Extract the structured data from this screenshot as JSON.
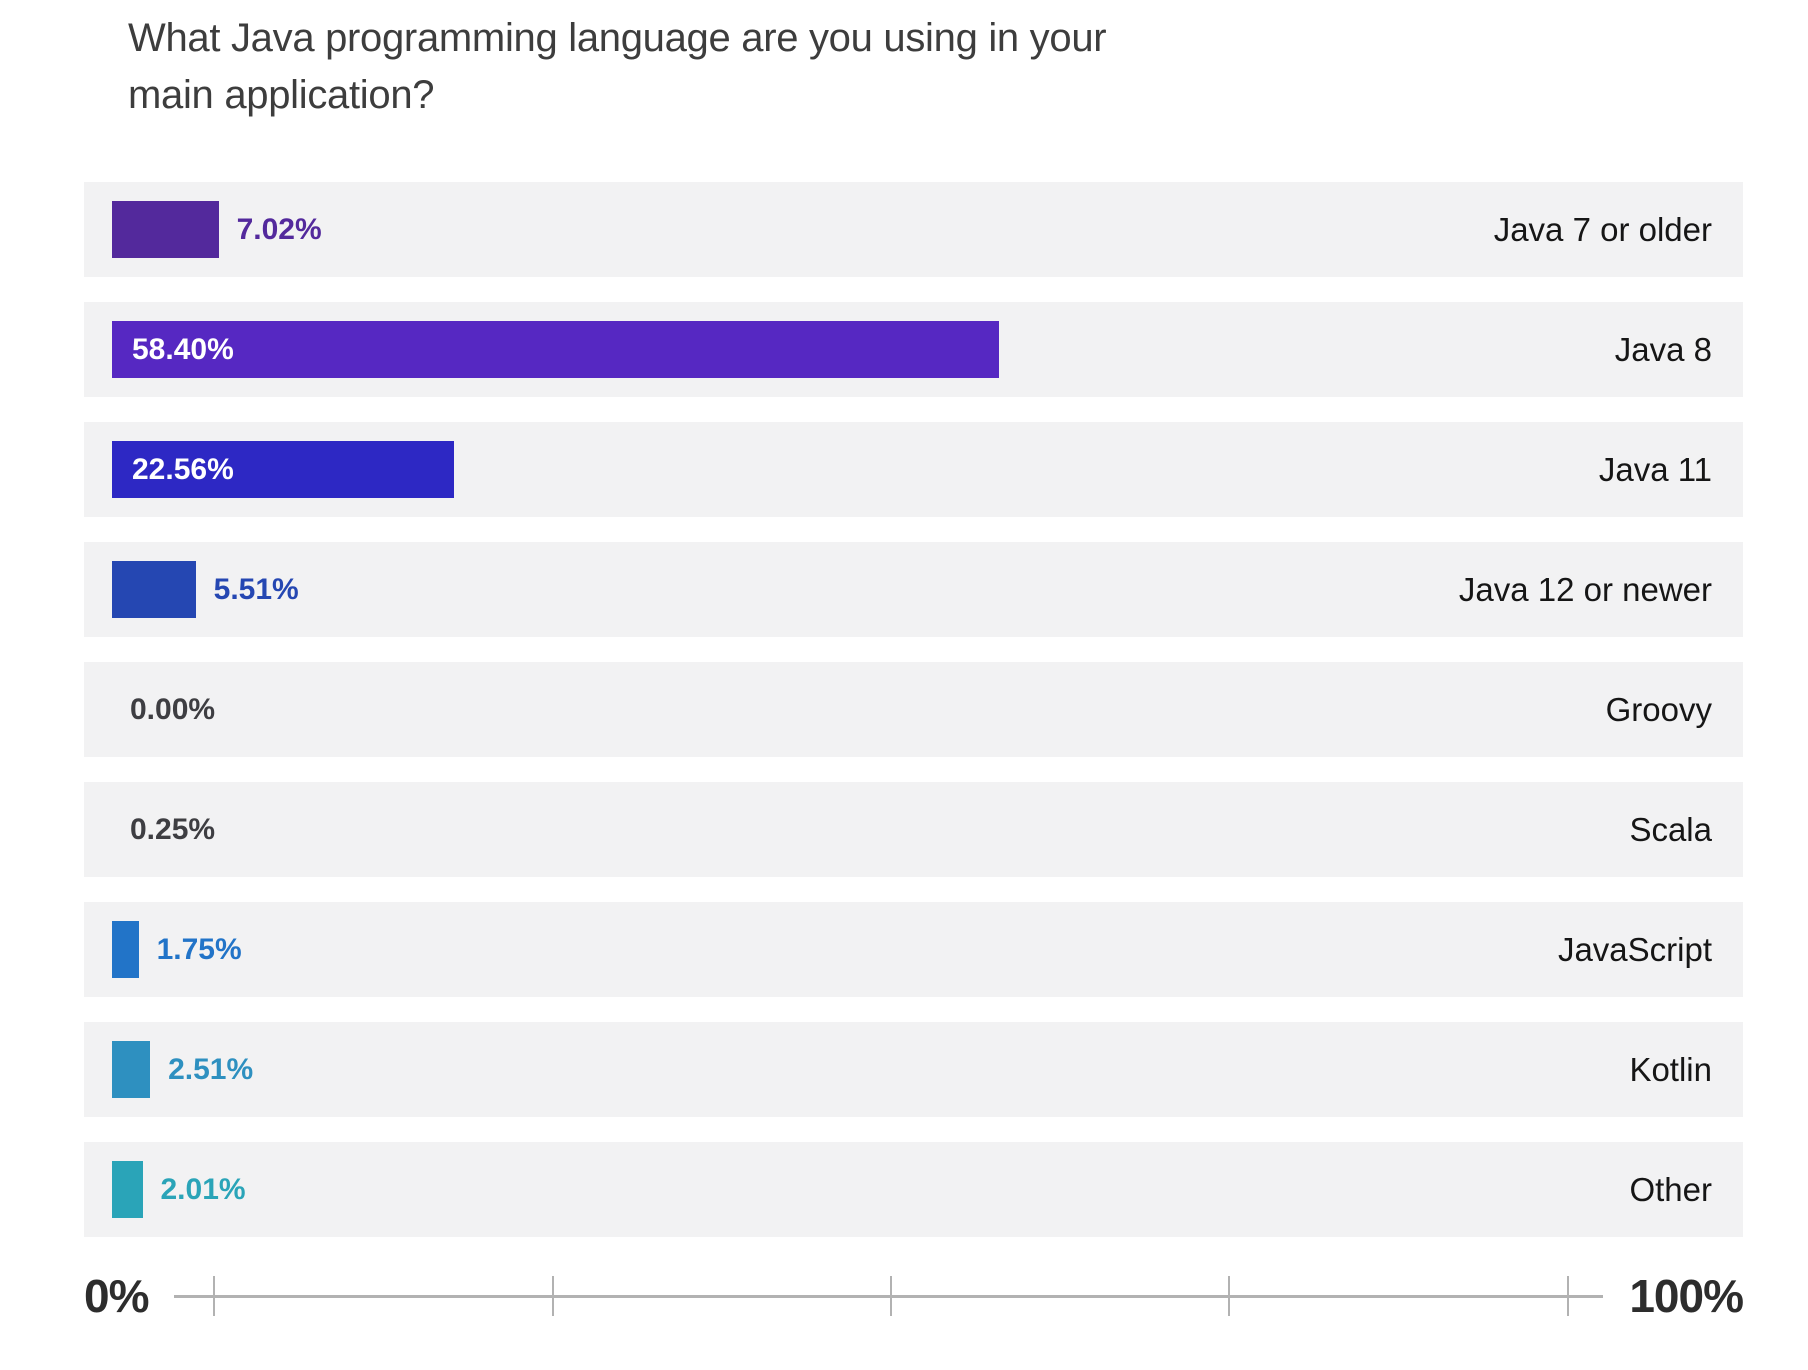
{
  "chart_data": {
    "type": "bar",
    "orientation": "horizontal",
    "title": "What Java programming language are you using in your main application?",
    "xlabel": "",
    "ylabel": "",
    "xlim": [
      0,
      100
    ],
    "grid": false,
    "legend": false,
    "x_axis": {
      "min_label": "0%",
      "max_label": "100%",
      "tick_count": 5
    },
    "items": [
      {
        "category": "Java 7 or older",
        "value": 7.02,
        "display": "7.02%",
        "bar_color": "#53299c",
        "label_color": "#53299c",
        "label_position": "outside"
      },
      {
        "category": "Java 8",
        "value": 58.4,
        "display": "58.40%",
        "bar_color": "#5628c2",
        "label_color": "#ffffff",
        "label_position": "inside"
      },
      {
        "category": "Java 11",
        "value": 22.56,
        "display": "22.56%",
        "bar_color": "#2d28c4",
        "label_color": "#ffffff",
        "label_position": "inside"
      },
      {
        "category": "Java 12 or newer",
        "value": 5.51,
        "display": "5.51%",
        "bar_color": "#2547b2",
        "label_color": "#2547b2",
        "label_position": "outside"
      },
      {
        "category": "Groovy",
        "value": 0.0,
        "display": "0.00%",
        "bar_color": null,
        "label_color": "#3e3e42",
        "label_position": "outside"
      },
      {
        "category": "Scala",
        "value": 0.25,
        "display": "0.25%",
        "bar_color": null,
        "label_color": "#3e3e42",
        "label_position": "outside"
      },
      {
        "category": "JavaScript",
        "value": 1.75,
        "display": "1.75%",
        "bar_color": "#2274c8",
        "label_color": "#2274c8",
        "label_position": "outside"
      },
      {
        "category": "Kotlin",
        "value": 2.51,
        "display": "2.51%",
        "bar_color": "#2e90c0",
        "label_color": "#2e90c0",
        "label_position": "outside"
      },
      {
        "category": "Other",
        "value": 2.01,
        "display": "2.01%",
        "bar_color": "#2aa4b8",
        "label_color": "#2aa4b8",
        "label_position": "outside"
      }
    ]
  },
  "colors": {
    "row_background": "#f2f2f3",
    "axis": "#b2b2b2",
    "title_text": "#3d3d3d",
    "category_text": "#161616"
  }
}
